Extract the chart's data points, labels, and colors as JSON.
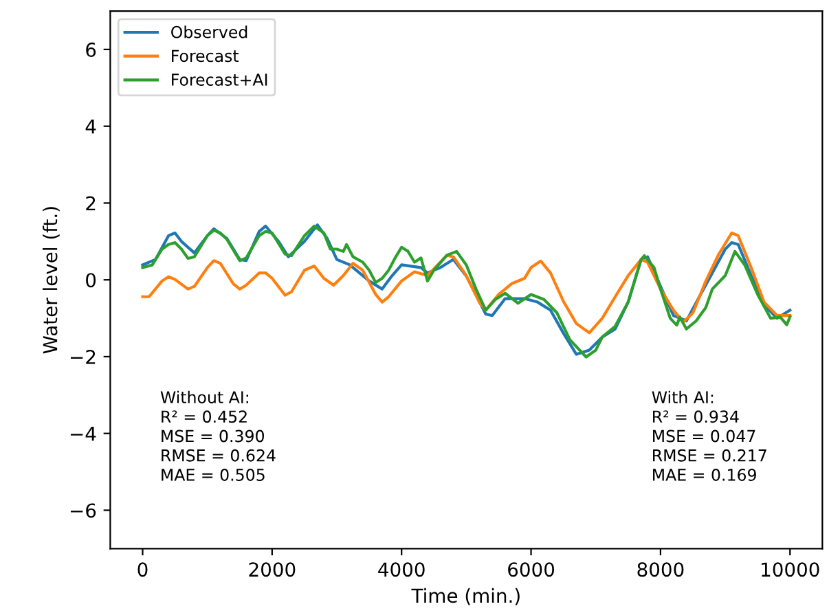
{
  "chart_data": {
    "type": "line",
    "xlabel": "Time (min.)",
    "ylabel": "Water level (ft.)",
    "xlim": [
      -500,
      10500
    ],
    "ylim": [
      -7,
      7
    ],
    "xticks": [
      0,
      2000,
      4000,
      6000,
      8000,
      10000
    ],
    "yticks": [
      {
        "value": -6,
        "label": "−6"
      },
      {
        "value": -4,
        "label": "−4"
      },
      {
        "value": -2,
        "label": "−2"
      },
      0,
      2,
      4,
      6
    ],
    "grid": false,
    "legend": "top left",
    "annotations": [
      "Without AI:\nR² = 0.452\nMSE = 0.390\nRMSE = 0.624\nMAE = 0.505",
      "With AI:\nR² = 0.934\nMSE = 0.047\nRMSE = 0.217\nMAE = 0.169"
    ],
    "series": [
      {
        "name": "Observed",
        "color": "#1f77b4",
        "x": [
          0,
          200,
          400,
          500,
          600,
          800,
          1000,
          1100,
          1300,
          1500,
          1600,
          1800,
          1900,
          2100,
          2250,
          2500,
          2700,
          2850,
          3000,
          3200,
          3500,
          3700,
          3850,
          4000,
          4300,
          4400,
          4600,
          4800,
          5000,
          5300,
          5400,
          5600,
          5900,
          6100,
          6300,
          6500,
          6700,
          6900,
          7100,
          7300,
          7500,
          7700,
          7800,
          8000,
          8200,
          8400,
          8600,
          8800,
          9000,
          9100,
          9200,
          9400,
          9600,
          9800,
          10000
        ],
        "values": [
          0.39,
          0.53,
          1.15,
          1.22,
          1.0,
          0.7,
          1.15,
          1.33,
          1.08,
          0.53,
          0.5,
          1.26,
          1.4,
          1.0,
          0.6,
          1.0,
          1.43,
          1.08,
          0.53,
          0.39,
          -0.03,
          -0.24,
          0.1,
          0.39,
          0.32,
          0.18,
          0.32,
          0.53,
          0.1,
          -0.89,
          -0.93,
          -0.49,
          -0.49,
          -0.58,
          -0.79,
          -1.39,
          -1.94,
          -1.83,
          -1.49,
          -1.28,
          -0.58,
          0.53,
          0.6,
          -0.17,
          -0.93,
          -1.07,
          -0.44,
          0.18,
          0.8,
          0.97,
          0.92,
          0.11,
          -0.65,
          -1.0,
          -0.79
        ]
      },
      {
        "name": "Forecast",
        "color": "#ff7f0e",
        "x": [
          0,
          100,
          300,
          400,
          500,
          700,
          800,
          1000,
          1100,
          1200,
          1400,
          1500,
          1600,
          1800,
          1900,
          2000,
          2200,
          2300,
          2500,
          2650,
          2800,
          2950,
          3100,
          3250,
          3400,
          3600,
          3700,
          3800,
          4000,
          4200,
          4400,
          4600,
          4700,
          4800,
          5000,
          5200,
          5300,
          5500,
          5700,
          5900,
          6000,
          6150,
          6300,
          6500,
          6700,
          6900,
          7100,
          7300,
          7500,
          7700,
          7800,
          8000,
          8200,
          8350,
          8500,
          8700,
          8900,
          9100,
          9200,
          9400,
          9600,
          9800,
          10000
        ],
        "values": [
          -0.44,
          -0.44,
          -0.03,
          0.08,
          0.01,
          -0.24,
          -0.17,
          0.32,
          0.5,
          0.43,
          -0.1,
          -0.24,
          -0.14,
          0.18,
          0.18,
          0.04,
          -0.4,
          -0.31,
          0.25,
          0.36,
          0.04,
          -0.14,
          0.11,
          0.43,
          0.25,
          -0.38,
          -0.58,
          -0.44,
          -0.03,
          0.21,
          0.11,
          0.46,
          0.64,
          0.6,
          0.11,
          -0.58,
          -0.79,
          -0.38,
          -0.1,
          0.04,
          0.32,
          0.49,
          0.18,
          -0.56,
          -1.14,
          -1.38,
          -1.0,
          -0.44,
          0.11,
          0.53,
          0.46,
          -0.24,
          -0.79,
          -1.1,
          -0.86,
          -0.03,
          0.67,
          1.22,
          1.15,
          0.32,
          -0.58,
          -0.93,
          -0.93
        ]
      },
      {
        "name": "Forecast+AI",
        "color": "#2ca02c",
        "x": [
          0,
          150,
          300,
          400,
          500,
          600,
          700,
          800,
          1000,
          1100,
          1200,
          1300,
          1500,
          1600,
          1800,
          1900,
          2000,
          2200,
          2300,
          2500,
          2650,
          2800,
          2900,
          3000,
          3100,
          3150,
          3250,
          3400,
          3500,
          3600,
          3700,
          3800,
          3900,
          4000,
          4100,
          4200,
          4300,
          4400,
          4500,
          4700,
          4850,
          5000,
          5150,
          5300,
          5450,
          5600,
          5800,
          6000,
          6200,
          6400,
          6600,
          6850,
          7000,
          7100,
          7200,
          7300,
          7500,
          7700,
          7750,
          7900,
          8000,
          8150,
          8250,
          8300,
          8400,
          8550,
          8700,
          8800,
          9000,
          9150,
          9300,
          9500,
          9700,
          9850,
          9950,
          10000
        ],
        "values": [
          0.32,
          0.39,
          0.8,
          0.92,
          0.97,
          0.8,
          0.56,
          0.6,
          1.15,
          1.29,
          1.22,
          1.06,
          0.5,
          0.57,
          1.15,
          1.26,
          1.22,
          0.67,
          0.63,
          1.15,
          1.4,
          1.22,
          0.8,
          0.8,
          0.74,
          0.92,
          0.6,
          0.46,
          0.25,
          -0.07,
          0.04,
          0.25,
          0.57,
          0.85,
          0.74,
          0.46,
          0.57,
          -0.03,
          0.25,
          0.64,
          0.74,
          0.39,
          -0.24,
          -0.79,
          -0.51,
          -0.35,
          -0.61,
          -0.38,
          -0.51,
          -0.86,
          -1.56,
          -2.01,
          -1.83,
          -1.49,
          -1.35,
          -1.21,
          -0.58,
          0.53,
          0.63,
          0.32,
          -0.24,
          -1.0,
          -1.18,
          -0.97,
          -1.28,
          -1.07,
          -0.72,
          -0.24,
          0.11,
          0.74,
          0.39,
          -0.38,
          -1.0,
          -0.97,
          -1.17,
          -0.96
        ]
      }
    ]
  }
}
